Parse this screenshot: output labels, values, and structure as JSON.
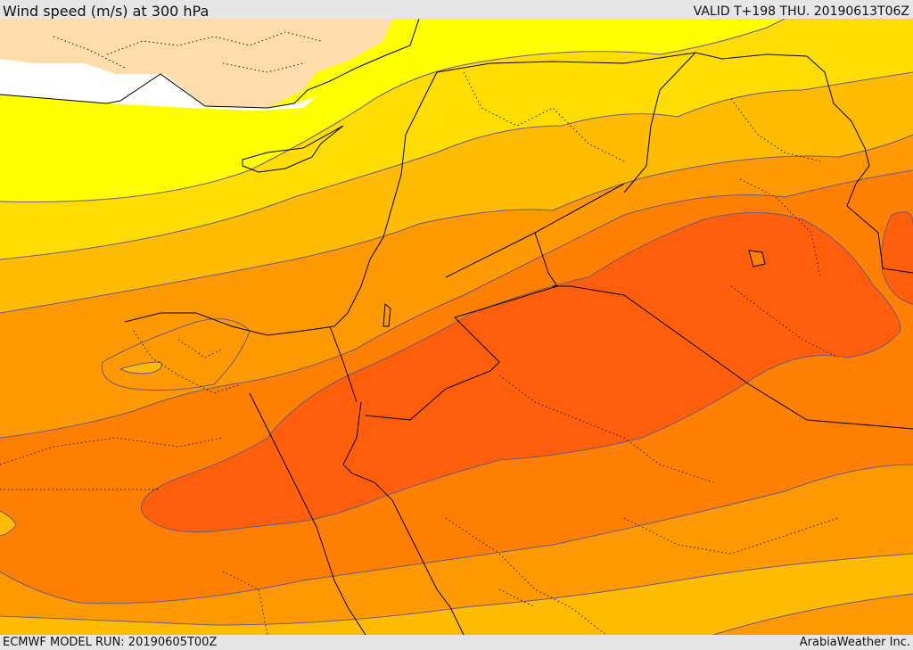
{
  "header": {
    "title": "Wind speed (m/s) at 300 hPa",
    "valid": "VALID T+198 THU. 20190613T06Z"
  },
  "footer": {
    "model_run": "ECMWF MODEL RUN: 20190605T00Z",
    "credit": "ArabiaWeather Inc."
  },
  "map": {
    "region": "Eastern Mediterranean / Middle East",
    "variable": "Wind speed",
    "level": "300 hPa",
    "units": "m/s",
    "fill_colors": {
      "land_no_data": "#ffdcaa",
      "sea_no_data": "#ffffff",
      "band_1": "#ffff00",
      "band_2": "#ffdd00",
      "band_3": "#ffbb00",
      "band_4": "#ff9900",
      "band_5": "#ff7f00",
      "band_6": "#ff5e0a"
    },
    "contour_color": "#6a5a8a",
    "border_color": "#000000"
  }
}
